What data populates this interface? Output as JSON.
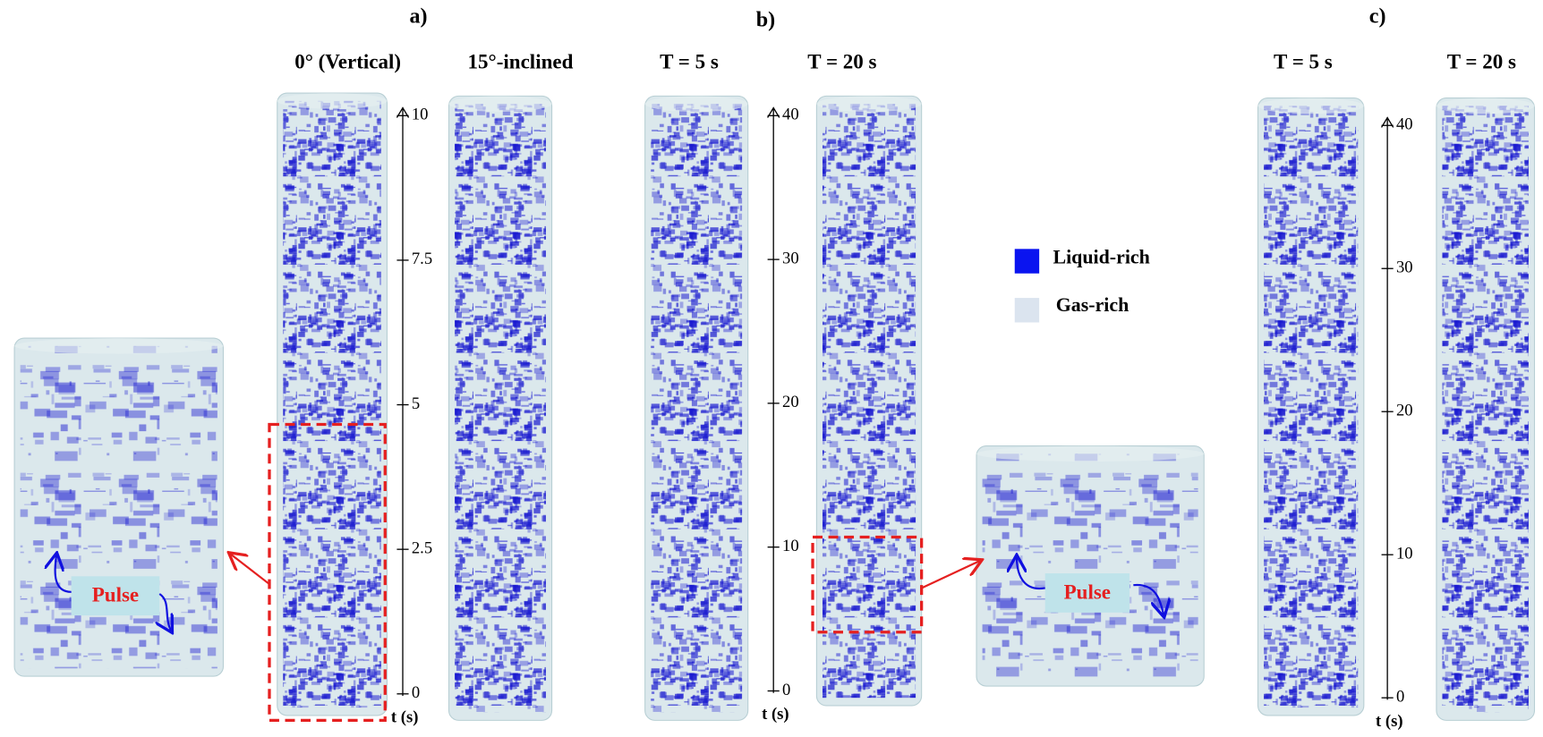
{
  "figure": {
    "panels": [
      {
        "label": "a)",
        "columns": [
          "0° (Vertical)",
          "15°-inclined"
        ],
        "axis": {
          "label": "t (s)",
          "ticks": [
            0,
            2.5,
            5,
            7.5,
            10
          ]
        },
        "inset": {
          "annotation": "Pulse"
        }
      },
      {
        "label": "b)",
        "columns": [
          "T = 5 s",
          "T = 20 s"
        ],
        "axis": {
          "label": "t (s)",
          "ticks": [
            0,
            10,
            20,
            30,
            40
          ]
        },
        "inset": {
          "annotation": "Pulse"
        }
      },
      {
        "label": "c)",
        "columns": [
          "T = 5 s",
          "T = 20 s"
        ],
        "axis": {
          "label": "t (s)",
          "ticks": [
            0,
            10,
            20,
            30,
            40
          ]
        }
      }
    ],
    "legend": [
      "Liquid-rich",
      "Gas-rich"
    ]
  }
}
